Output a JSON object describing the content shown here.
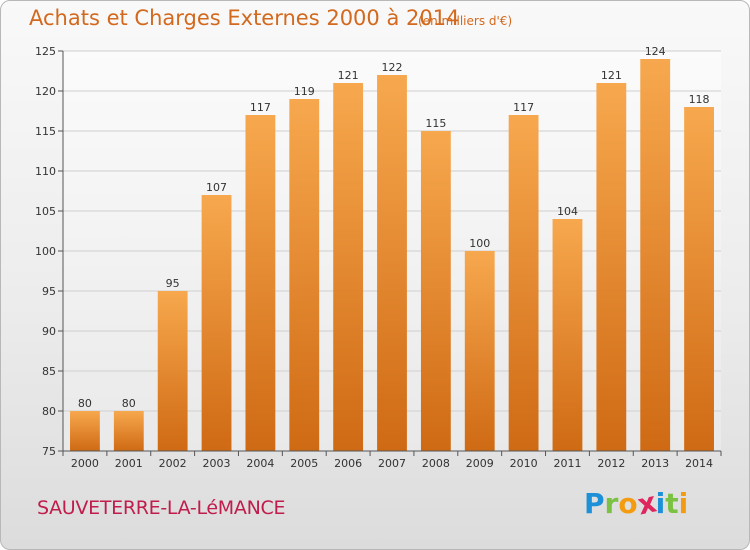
{
  "chart_data": {
    "type": "bar",
    "title": "Achats et Charges Externes 2000 à 2014",
    "subtitle": "(en milliers d'€)",
    "categories": [
      "2000",
      "2001",
      "2002",
      "2003",
      "2004",
      "2005",
      "2006",
      "2007",
      "2008",
      "2009",
      "2010",
      "2011",
      "2012",
      "2013",
      "2014"
    ],
    "values": [
      80,
      80,
      95,
      107,
      117,
      119,
      121,
      122,
      115,
      100,
      117,
      104,
      121,
      124,
      118
    ],
    "ylim": [
      75,
      125
    ],
    "yticks": [
      75,
      80,
      85,
      90,
      95,
      100,
      105,
      110,
      115,
      120,
      125
    ],
    "grid": true,
    "xlabel": "",
    "ylabel": "",
    "bar_color_top": "#f7a84e",
    "bar_color_bottom": "#cf6a14"
  },
  "footer": {
    "town": "SAUVETERRE-LA-LéMANCE"
  },
  "logo": {
    "letters": [
      "P",
      "r",
      "o",
      "x",
      "i",
      "t",
      "i"
    ],
    "colors": [
      "#1e90d8",
      "#7cc242",
      "#f39c12",
      "#e0245e",
      "#1e90d8",
      "#7cc242",
      "#f39c12"
    ]
  }
}
